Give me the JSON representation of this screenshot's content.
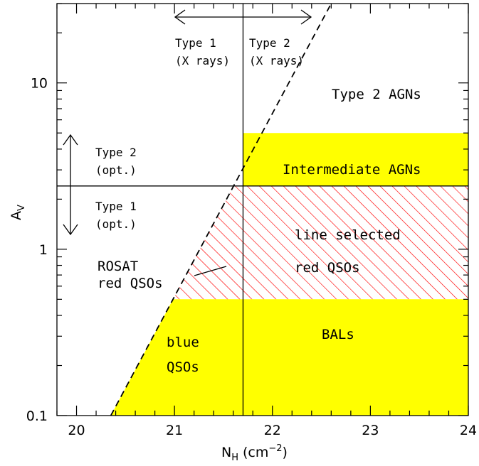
{
  "chart_data": {
    "type": "area",
    "title": "",
    "xlabel": {
      "main": "N",
      "sub": "H",
      "unit": "(cm",
      "exp": "−2",
      "close": ")"
    },
    "ylabel": {
      "main": "A",
      "sub": "V"
    },
    "xlim": [
      19.8,
      24
    ],
    "ylim": [
      0.1,
      30
    ],
    "yscale": "log",
    "x_ticks": [
      20,
      21,
      22,
      23,
      24
    ],
    "x_tick_labels": [
      "20",
      "21",
      "22",
      "23",
      "24"
    ],
    "y_ticks": [
      0.1,
      1,
      10
    ],
    "y_tick_labels": [
      "0.1",
      "1",
      "10"
    ],
    "colors": {
      "yellow": "#ffff00",
      "hatch": "#ff0000",
      "line": "#000000"
    },
    "dashed_line": {
      "label": "",
      "points": [
        [
          20.35,
          0.1
        ],
        [
          22.6,
          30
        ]
      ]
    },
    "vertical_line_x": 21.7,
    "horizontal_line_y": 2.4,
    "regions": [
      {
        "name": "Intermediate AGNs",
        "fill": "yellow",
        "bounds": {
          "x": [
            21.7,
            24
          ],
          "y": [
            2.4,
            5
          ]
        }
      },
      {
        "name": "line selected red QSOs",
        "fill": "hatch",
        "bounds": {
          "x": [
            21.7,
            24
          ],
          "y": [
            0.5,
            2.4
          ]
        }
      },
      {
        "name": "BALs",
        "fill": "yellow",
        "bounds": {
          "x": [
            21.7,
            24
          ],
          "y": [
            0.1,
            0.5
          ]
        }
      },
      {
        "name": "blue QSOs",
        "fill": "yellow",
        "bounds": {
          "x": [
            20.35,
            21.7
          ],
          "y": [
            0.1,
            0.5
          ]
        }
      },
      {
        "name": "ROSAT red QSOs",
        "fill": "hatch",
        "bounds": {
          "x": [
            21.0,
            21.7
          ],
          "y": [
            0.5,
            2.4
          ]
        }
      }
    ],
    "annotations": {
      "type1_xrays": [
        "Type 1",
        "(X rays)"
      ],
      "type2_xrays": [
        "Type 2",
        "(X rays)"
      ],
      "type2_opt": [
        "Type 2",
        "(opt.)"
      ],
      "type1_opt": [
        "Type 1",
        "(opt.)"
      ],
      "type2_agns": "Type 2 AGNs",
      "intermediate_agns": "Intermediate AGNs",
      "line_selected": [
        "line selected",
        "red QSOs"
      ],
      "rosat": [
        "ROSAT",
        "red QSOs"
      ],
      "bals": "BALs",
      "blue_qsos": [
        "blue",
        "QSOs"
      ]
    }
  }
}
